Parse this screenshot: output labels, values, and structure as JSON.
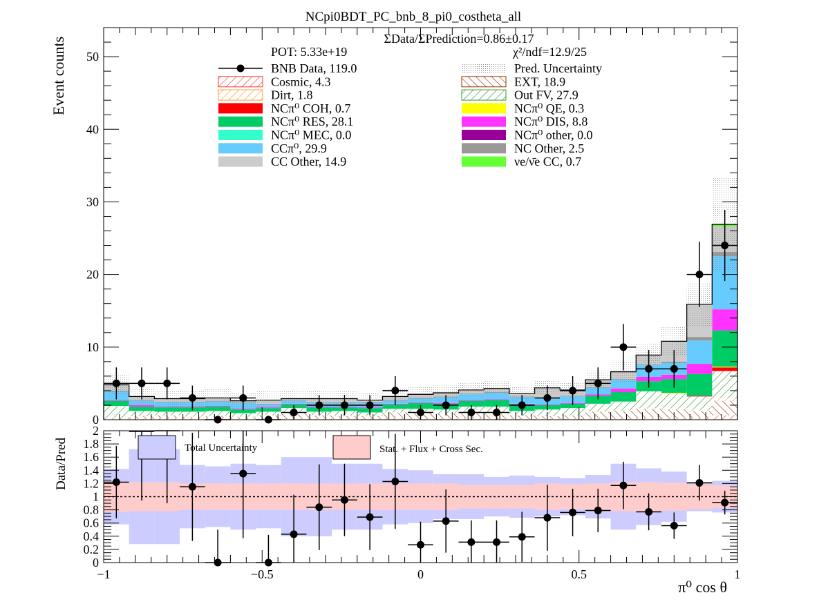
{
  "chart_data": {
    "type": "bar",
    "title": "NCpi0BDT_PC_bnb_8_pi0_costheta_all",
    "top_annotation": "ΣData/ΣPrediction=0.86±0.17",
    "pot_label": "POT: 5.33e+19",
    "chi2_label": "χ²/ndf=12.9/25",
    "xlabel": "π⁰ cos θ",
    "ylabel": "Event counts",
    "ratio_ylabel": "Data/Pred",
    "xlim": [
      -1,
      1
    ],
    "ylim": [
      0,
      54
    ],
    "ratio_ylim": [
      0,
      2
    ],
    "x_ticks": [
      "−1",
      "−0.5",
      "0",
      "0.5",
      "1"
    ],
    "y_ticks": [
      "0",
      "10",
      "20",
      "30",
      "40",
      "50"
    ],
    "ratio_y_ticks": [
      "0",
      "0.2",
      "0.4",
      "0.6",
      "0.8",
      "1",
      "1.2",
      "1.4",
      "1.6",
      "1.8",
      "2"
    ],
    "bin_edges": [
      -1.0,
      -0.92,
      -0.84,
      -0.76,
      -0.68,
      -0.6,
      -0.52,
      -0.44,
      -0.36,
      -0.28,
      -0.2,
      -0.12,
      -0.04,
      0.04,
      0.12,
      0.2,
      0.28,
      0.36,
      0.44,
      0.52,
      0.6,
      0.68,
      0.76,
      0.84,
      0.92,
      1.0
    ],
    "legend": [
      {
        "label": "BNB Data, 119.0",
        "style": "marker",
        "color": "#000000"
      },
      {
        "label": "Pred. Uncertainty",
        "style": "dots",
        "color": "#aaaaaa"
      },
      {
        "label": "Cosmic, 4.3",
        "style": "hatch",
        "color": "#ff3333"
      },
      {
        "label": "EXT, 18.9",
        "style": "hatch",
        "color": "#993300"
      },
      {
        "label": "Dirt, 1.8",
        "style": "hatch",
        "color": "#ff9933"
      },
      {
        "label": "Out FV, 27.9",
        "style": "hatch",
        "color": "#339933"
      },
      {
        "label": "NCπ⁰ COH,  0.7",
        "style": "fill",
        "color": "#ff0000"
      },
      {
        "label": "NCπ⁰ QE,  0.3",
        "style": "fill",
        "color": "#ffff00"
      },
      {
        "label": "NCπ⁰ RES,  28.1",
        "style": "fill",
        "color": "#00cc66"
      },
      {
        "label": "NCπ⁰ DIS,  8.8",
        "style": "fill",
        "color": "#ff33ff"
      },
      {
        "label": "NCπ⁰ MEC,  0.0",
        "style": "fill",
        "color": "#33ffcc"
      },
      {
        "label": "NCπ⁰ other,  0.0",
        "style": "fill",
        "color": "#990099"
      },
      {
        "label": "CCπ⁰, 29.9",
        "style": "fill",
        "color": "#66ccff"
      },
      {
        "label": "NC Other, 2.5",
        "style": "fill",
        "color": "#999999"
      },
      {
        "label": "CC Other, 14.9",
        "style": "fill",
        "color": "#cccccc"
      },
      {
        "label": "νe/ν̄e CC, 0.7",
        "style": "fill",
        "color": "#66ff33"
      }
    ],
    "stack": [
      {
        "name": "Cosmic",
        "color": "#ff3333",
        "pattern": "hatch",
        "values": [
          0.2,
          0.1,
          0.2,
          0.2,
          0.2,
          0.1,
          0.1,
          0.1,
          0.1,
          0.1,
          0.1,
          0.2,
          0.1,
          0.1,
          0.2,
          0.1,
          0.1,
          0.1,
          0.1,
          0.1,
          0.1,
          0.2,
          0.1,
          0.2,
          0.6
        ]
      },
      {
        "name": "EXT",
        "color": "#993300",
        "pattern": "hatch",
        "values": [
          0.0,
          0.4,
          0.4,
          0.2,
          0.3,
          0.3,
          0.5,
          0.8,
          0.5,
          0.4,
          0.4,
          0.8,
          0.8,
          0.7,
          0.7,
          0.6,
          0.5,
          0.4,
          0.5,
          1.0,
          1.1,
          1.3,
          1.3,
          1.0,
          2.0
        ]
      },
      {
        "name": "Dirt",
        "color": "#ff9933",
        "pattern": "hatch",
        "values": [
          0.1,
          0.0,
          0.0,
          0.1,
          0.1,
          0.0,
          0.0,
          0.1,
          0.0,
          0.1,
          0.0,
          0.0,
          0.0,
          0.0,
          0.1,
          0.1,
          0.0,
          0.0,
          0.0,
          0.1,
          0.1,
          0.1,
          0.2,
          0.2,
          0.4
        ]
      },
      {
        "name": "Out FV",
        "color": "#339933",
        "pattern": "hatch",
        "values": [
          1.6,
          0.7,
          0.5,
          0.6,
          0.6,
          0.5,
          0.5,
          0.6,
          0.5,
          0.6,
          0.5,
          0.5,
          0.6,
          0.6,
          0.8,
          1.0,
          0.6,
          0.9,
          1.0,
          1.0,
          1.2,
          2.3,
          2.0,
          1.8,
          3.7
        ]
      },
      {
        "name": "NCπ⁰ COH",
        "color": "#ff0000",
        "pattern": "fill",
        "values": [
          0,
          0,
          0,
          0,
          0,
          0,
          0,
          0,
          0,
          0,
          0,
          0,
          0,
          0,
          0,
          0,
          0,
          0,
          0,
          0,
          0,
          0,
          0,
          0.1,
          0.5
        ]
      },
      {
        "name": "NCπ⁰ QE",
        "color": "#ffff00",
        "pattern": "fill",
        "values": [
          0,
          0,
          0,
          0,
          0,
          0,
          0,
          0,
          0,
          0,
          0,
          0,
          0,
          0,
          0,
          0,
          0,
          0,
          0,
          0,
          0,
          0,
          0.1,
          0,
          0.1
        ]
      },
      {
        "name": "NCπ⁰ RES",
        "color": "#00cc66",
        "pattern": "fill",
        "values": [
          0.7,
          0.6,
          0.6,
          0.6,
          0.6,
          0.5,
          0.5,
          0.5,
          0.6,
          0.5,
          0.6,
          0.6,
          0.8,
          0.8,
          0.8,
          0.9,
          0.9,
          0.6,
          0.6,
          1.1,
          1.3,
          1.4,
          1.9,
          3.0,
          5.0
        ]
      },
      {
        "name": "NCπ⁰ DIS",
        "color": "#ff33ff",
        "pattern": "fill",
        "values": [
          0.1,
          0.2,
          0.1,
          0.1,
          0.1,
          0.1,
          0.1,
          0.1,
          0.1,
          0.1,
          0.1,
          0.1,
          0.1,
          0.1,
          0.1,
          0.1,
          0.1,
          0.1,
          0.1,
          0.2,
          0.5,
          0.6,
          0.6,
          1.4,
          2.9
        ]
      },
      {
        "name": "CCπ⁰",
        "color": "#66ccff",
        "pattern": "fill",
        "values": [
          1.2,
          0.6,
          0.6,
          0.6,
          0.6,
          0.8,
          0.4,
          0.4,
          0.5,
          0.5,
          0.6,
          0.4,
          0.5,
          0.8,
          0.8,
          0.9,
          0.9,
          0.8,
          0.9,
          0.9,
          1.2,
          1.6,
          1.6,
          3.2,
          7.3
        ]
      },
      {
        "name": "NC Other",
        "color": "#999999",
        "pattern": "fill",
        "values": [
          0.1,
          0.1,
          0.1,
          0.1,
          0.1,
          0.1,
          0.1,
          0.1,
          0.1,
          0.1,
          0.1,
          0.1,
          0.1,
          0.1,
          0.1,
          0.1,
          0.1,
          0.1,
          0.1,
          0.1,
          0.1,
          0.1,
          0.2,
          0.5,
          0.6
        ]
      },
      {
        "name": "CC Other",
        "color": "#cccccc",
        "pattern": "fill",
        "values": [
          0.8,
          0.5,
          0.4,
          0.4,
          0.4,
          0.2,
          0.5,
          0.2,
          0.5,
          0.5,
          0.3,
          0.5,
          0.5,
          0.5,
          0.5,
          0.5,
          0.4,
          1.4,
          0.8,
          1.0,
          1.0,
          1.3,
          2.8,
          4.5,
          3.5
        ]
      },
      {
        "name": "νe/ν̄e CC",
        "color": "#66ff33",
        "pattern": "fill",
        "values": [
          0,
          0,
          0,
          0,
          0,
          0,
          0,
          0,
          0,
          0,
          0,
          0,
          0,
          0,
          0,
          0,
          0,
          0,
          0,
          0,
          0,
          0,
          0,
          0,
          0.3
        ]
      }
    ],
    "pred_uncertainty": [
      1.5,
      1.2,
      1.2,
      1.2,
      1.2,
      1.2,
      1.2,
      1.2,
      1.0,
      1.0,
      1.0,
      1.0,
      1.0,
      1.0,
      1.0,
      1.0,
      1.0,
      1.0,
      1.0,
      1.2,
      1.5,
      1.6,
      2.0,
      3.0,
      6.5
    ],
    "data": {
      "name": "BNB Data",
      "values": [
        5,
        5,
        5,
        3,
        0,
        3,
        0,
        1,
        2,
        2,
        2,
        4,
        1,
        2,
        1,
        1,
        2,
        3,
        4,
        5,
        10,
        7,
        7,
        20,
        24
      ],
      "errors": [
        2.2,
        2.2,
        2.2,
        1.7,
        0,
        1.7,
        0,
        1.0,
        1.4,
        1.4,
        1.4,
        2.0,
        1.0,
        1.4,
        1.0,
        1.0,
        1.4,
        1.7,
        2.0,
        2.2,
        3.2,
        2.6,
        2.6,
        4.5,
        4.9
      ]
    },
    "ratio": {
      "values": [
        1.22,
        1.99,
        2.0,
        1.15,
        0.0,
        1.35,
        0.0,
        0.43,
        0.84,
        0.95,
        0.69,
        1.23,
        0.27,
        0.63,
        0.31,
        0.31,
        0.39,
        0.68,
        0.76,
        0.79,
        1.17,
        0.77,
        0.56,
        1.21,
        0.91
      ],
      "errors": [
        0.55,
        1.05,
        1.1,
        0.82,
        0.5,
        0.98,
        0.42,
        0.6,
        0.65,
        0.55,
        0.5,
        0.72,
        0.35,
        0.48,
        0.33,
        0.33,
        0.38,
        0.5,
        0.36,
        0.33,
        0.36,
        0.28,
        0.2,
        0.27,
        0.18
      ],
      "total_unc": [
        0.42,
        0.72,
        0.72,
        0.48,
        0.46,
        0.5,
        0.48,
        0.6,
        0.6,
        0.5,
        0.5,
        0.42,
        0.4,
        0.34,
        0.34,
        0.3,
        0.32,
        0.3,
        0.28,
        0.33,
        0.5,
        0.43,
        0.38,
        0.22,
        0.24
      ],
      "stat_flux_xsec": [
        0.23,
        0.22,
        0.22,
        0.2,
        0.2,
        0.2,
        0.2,
        0.2,
        0.2,
        0.2,
        0.2,
        0.2,
        0.2,
        0.2,
        0.18,
        0.18,
        0.18,
        0.2,
        0.19,
        0.2,
        0.22,
        0.22,
        0.21,
        0.19,
        0.17
      ]
    },
    "ratio_legend": [
      {
        "label": "Total Uncertainty",
        "color": "#ccccff"
      },
      {
        "label": "Stat. + Flux + Cross Sec.",
        "color": "#ffcccc"
      }
    ]
  }
}
